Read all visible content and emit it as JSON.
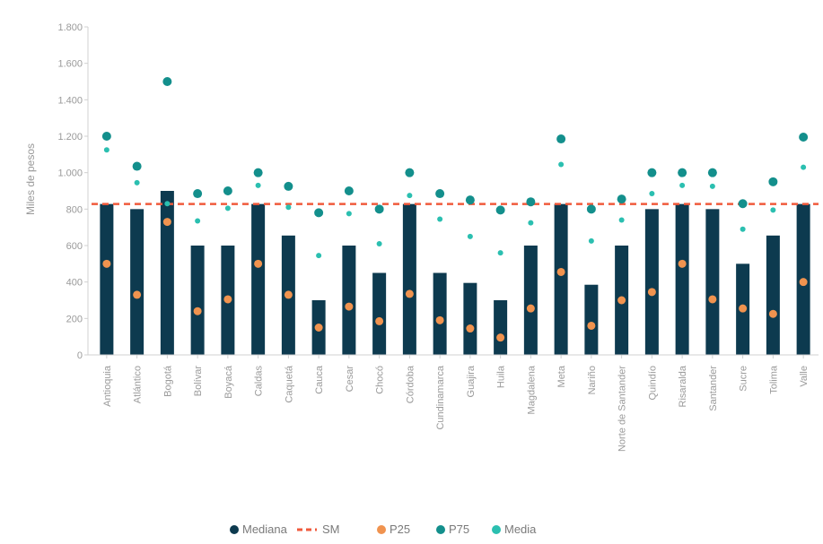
{
  "chart_data": {
    "type": "bar",
    "ylabel": "Miles de pesos",
    "ylim": [
      0,
      1800
    ],
    "yticks": [
      0,
      200,
      400,
      600,
      800,
      1000,
      1200,
      1400,
      1600,
      1800
    ],
    "ytick_labels": [
      "0",
      "200",
      "400",
      "600",
      "800",
      "1.000",
      "1.200",
      "1.400",
      "1.600",
      "1.800"
    ],
    "categories": [
      "Antioquia",
      "Atlántico",
      "Bogotá",
      "Bolívar",
      "Boyacá",
      "Caldas",
      "Caquetá",
      "Cauca",
      "Cesar",
      "Chocó",
      "Córdoba",
      "Cundinamarca",
      "Guajira",
      "Huila",
      "Magdalena",
      "Meta",
      "Nariño",
      "Norte de Santander",
      "Quindío",
      "Risaralda",
      "Santander",
      "Sucre",
      "Tolima",
      "Valle"
    ],
    "reference_line": {
      "name": "SM",
      "value": 828
    },
    "series": [
      {
        "name": "Mediana",
        "kind": "bar",
        "color": "#0d3a4f",
        "values": [
          828,
          800,
          900,
          600,
          600,
          828,
          655,
          300,
          600,
          450,
          828,
          450,
          395,
          300,
          600,
          828,
          385,
          600,
          800,
          828,
          800,
          500,
          655,
          828
        ]
      },
      {
        "name": "P25",
        "kind": "point",
        "color": "#f0934f",
        "values": [
          500,
          330,
          730,
          240,
          305,
          500,
          330,
          150,
          265,
          185,
          335,
          190,
          145,
          95,
          255,
          455,
          160,
          300,
          345,
          500,
          305,
          255,
          225,
          400
        ]
      },
      {
        "name": "P75",
        "kind": "point",
        "color": "#138f8c",
        "values": [
          1200,
          1035,
          1500,
          885,
          900,
          1000,
          925,
          780,
          900,
          800,
          1000,
          885,
          850,
          795,
          840,
          1185,
          800,
          855,
          1000,
          1000,
          1000,
          830,
          950,
          1195
        ]
      },
      {
        "name": "Media",
        "kind": "point",
        "color": "#2bbfb0",
        "values": [
          1125,
          945,
          830,
          735,
          805,
          930,
          810,
          545,
          775,
          610,
          875,
          745,
          650,
          560,
          725,
          1045,
          625,
          740,
          885,
          930,
          925,
          690,
          795,
          1030
        ]
      }
    ],
    "legend": [
      {
        "label": "Mediana",
        "style": "dot",
        "color": "#0d3a4f"
      },
      {
        "label": "SM",
        "style": "dash",
        "color": "#f05a3c"
      },
      {
        "label": "P25",
        "style": "dot",
        "color": "#f0934f"
      },
      {
        "label": "P75",
        "style": "dot",
        "color": "#138f8c"
      },
      {
        "label": "Media",
        "style": "dot",
        "color": "#2bbfb0"
      }
    ],
    "legend_position": "bottom-center",
    "grid": false
  }
}
